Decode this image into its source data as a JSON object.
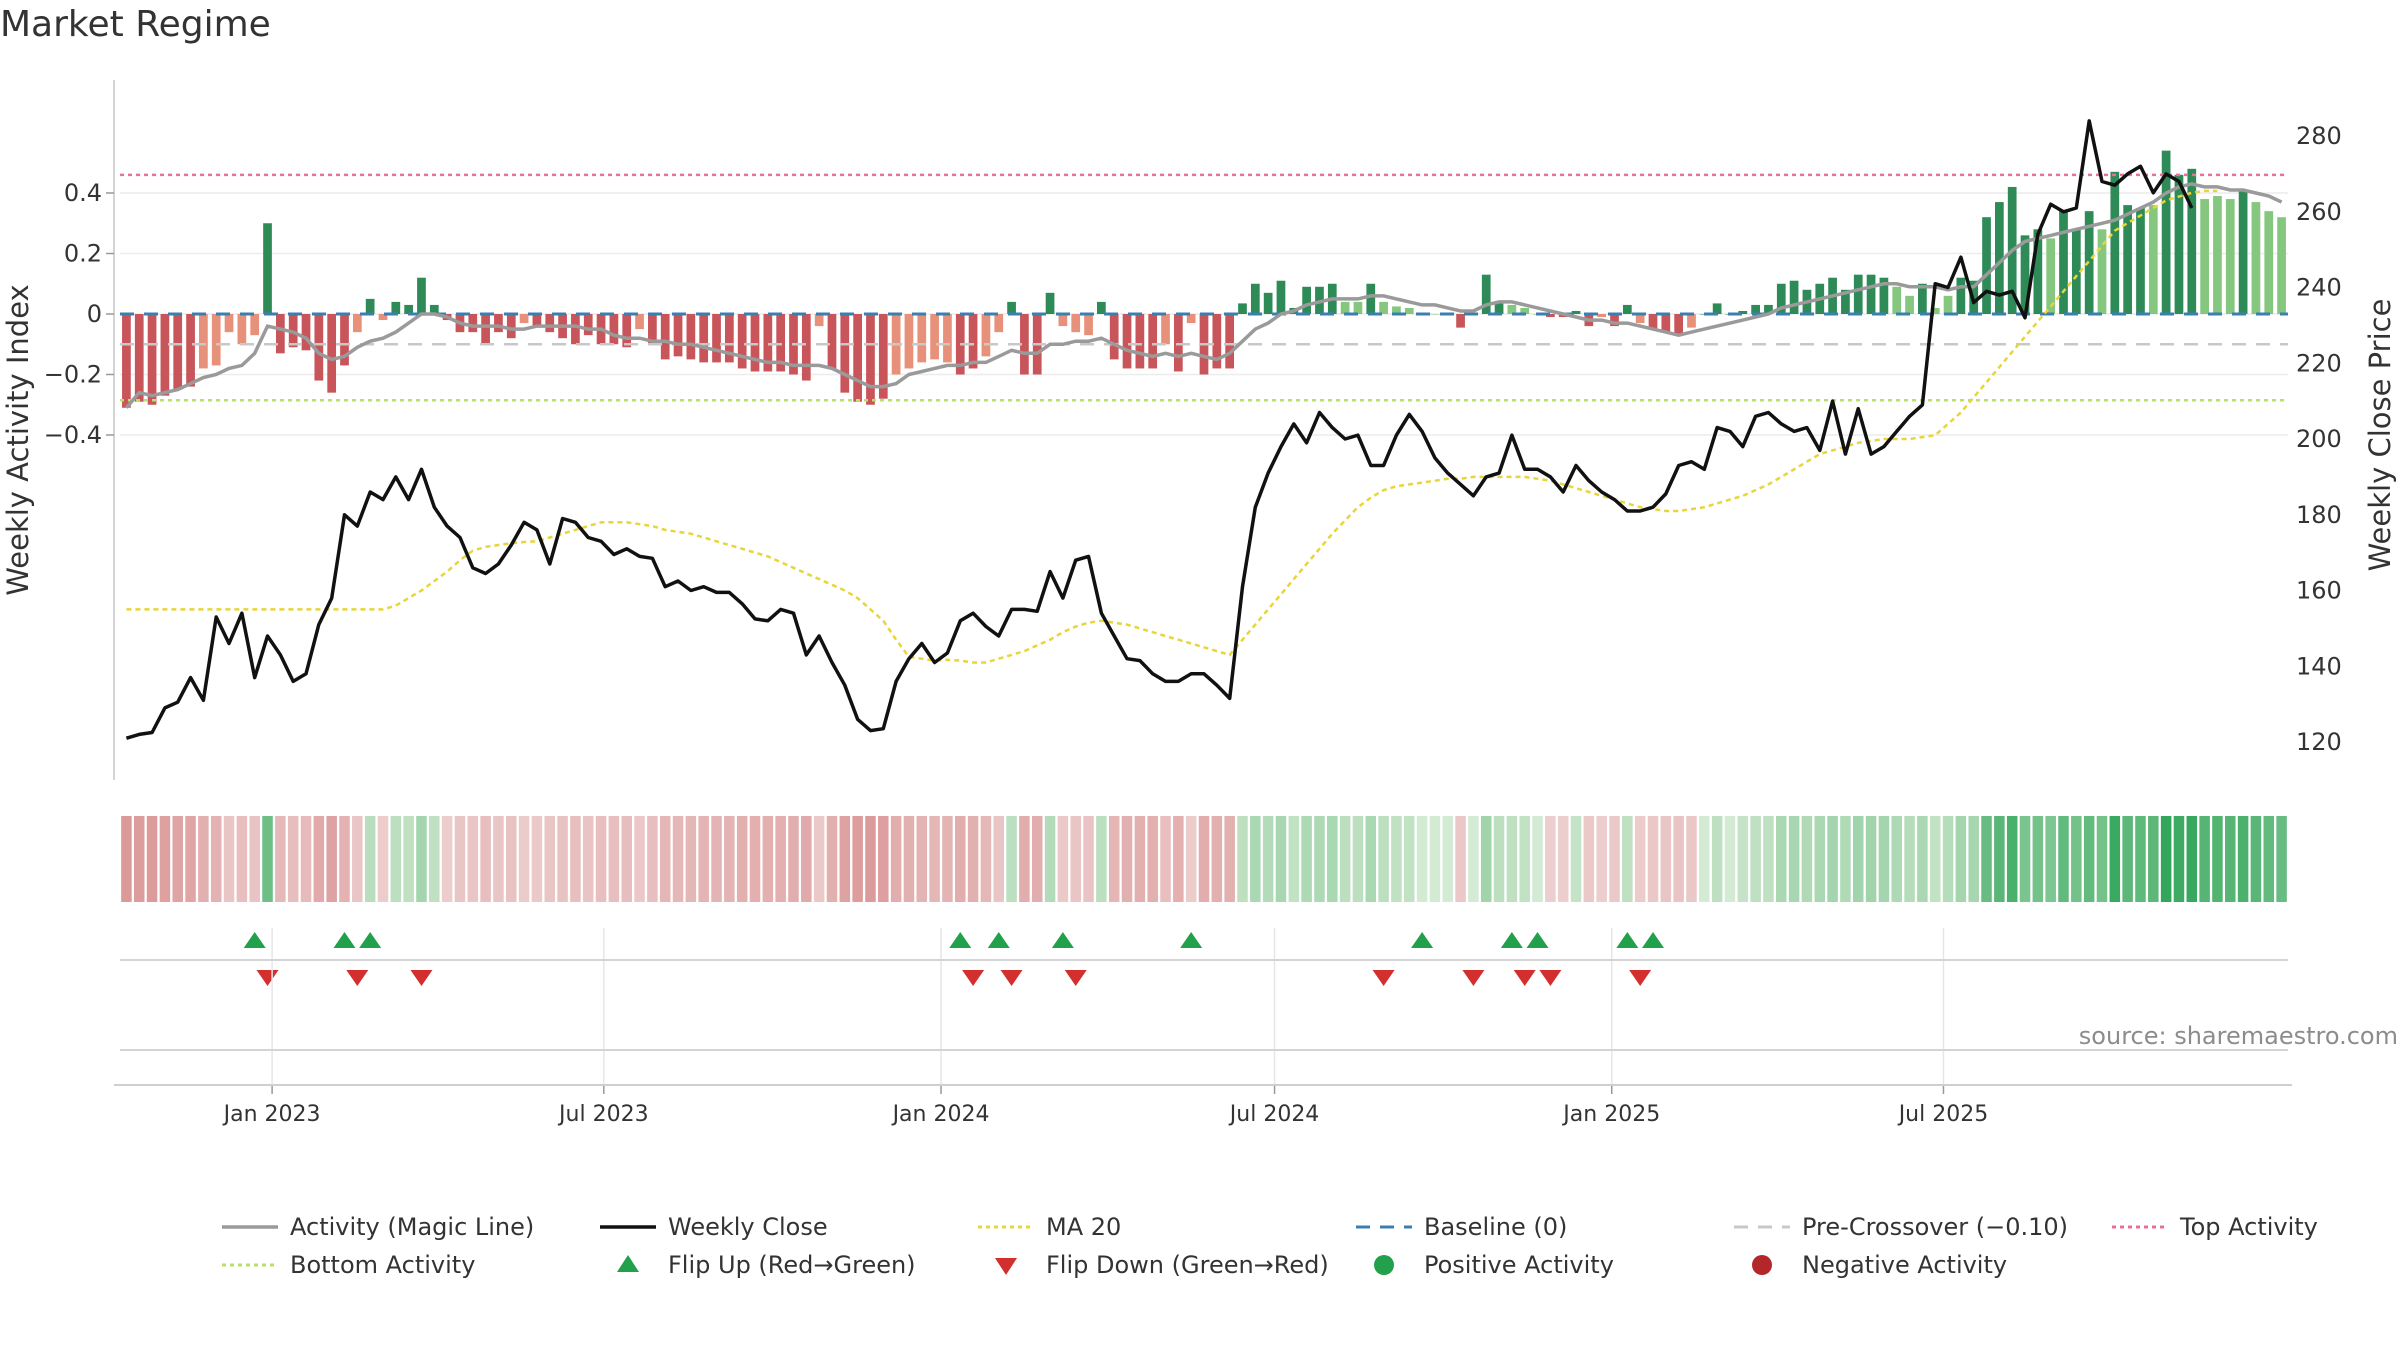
{
  "title": "Market Regime",
  "source_text": "source: sharemaestro.com",
  "colors": {
    "green_dark": "#2e8b57",
    "green_light": "#86c77f",
    "red_dark": "#c8555a",
    "red_light": "#e8917a",
    "magic_line": "#9a9a9a",
    "close_line": "#111111",
    "ma20": "#e8d53a",
    "baseline": "#3b7fb0",
    "pre_crossover": "#c8c8c8",
    "top_activity": "#e8709a",
    "bottom_activity": "#b8e06a",
    "flip_up": "#22a04b",
    "flip_down": "#d32f2f"
  },
  "chart_data": {
    "type": "bar",
    "title": "Market Regime",
    "ylabel": "Weekly Activity Index",
    "y2label": "Weekly Close Price",
    "ylim": [
      -0.58,
      0.58
    ],
    "y2lim": [
      111,
      296
    ],
    "yticks": [
      "0.4",
      "0.2",
      "0",
      "−0.2",
      "−0.4"
    ],
    "y2ticks": [
      "280",
      "260",
      "240",
      "220",
      "200",
      "180",
      "160",
      "140",
      "120"
    ],
    "xticks": [
      "Jan 2023",
      "Jul 2023",
      "Jan 2024",
      "Jul 2024",
      "Jan 2025",
      "Jul 2025"
    ],
    "reference_lines": {
      "baseline": 0,
      "pre_crossover": -0.1,
      "top_activity": 0.46,
      "bottom_activity": -0.285
    },
    "x_start": "2022-10-10",
    "series": [
      {
        "name": "Weekly Activity",
        "values": [
          -0.31,
          -0.29,
          -0.3,
          -0.27,
          -0.25,
          -0.24,
          -0.18,
          -0.17,
          -0.06,
          -0.1,
          -0.07,
          0.3,
          -0.13,
          -0.11,
          -0.12,
          -0.22,
          -0.26,
          -0.17,
          -0.06,
          0.05,
          -0.02,
          0.04,
          0.03,
          0.12,
          0.03,
          -0.02,
          -0.06,
          -0.06,
          -0.1,
          -0.06,
          -0.08,
          -0.03,
          -0.04,
          -0.06,
          -0.08,
          -0.1,
          -0.07,
          -0.1,
          -0.1,
          -0.11,
          -0.05,
          -0.1,
          -0.15,
          -0.14,
          -0.15,
          -0.16,
          -0.16,
          -0.16,
          -0.18,
          -0.19,
          -0.19,
          -0.19,
          -0.2,
          -0.22,
          -0.04,
          -0.18,
          -0.26,
          -0.29,
          -0.3,
          -0.28,
          -0.2,
          -0.18,
          -0.16,
          -0.15,
          -0.16,
          -0.2,
          -0.18,
          -0.14,
          -0.06,
          0.04,
          -0.2,
          -0.2,
          0.07,
          -0.04,
          -0.06,
          -0.07,
          0.04,
          -0.15,
          -0.18,
          -0.18,
          -0.18,
          -0.1,
          -0.19,
          -0.03,
          -0.2,
          -0.18,
          -0.18,
          0.035,
          0.1,
          0.07,
          0.11,
          0.02,
          0.09,
          0.09,
          0.1,
          0.04,
          0.04,
          0.1,
          0.04,
          0.025,
          0.02,
          0,
          0,
          0,
          -0.045,
          0,
          0.13,
          0.04,
          0.03,
          0.02,
          0,
          -0.01,
          -0.01,
          0.01,
          -0.04,
          -0.01,
          -0.04,
          0.03,
          -0.03,
          -0.05,
          -0.06,
          -0.07,
          -0.045,
          0,
          0.035,
          0,
          0.01,
          0.03,
          0.03,
          0.1,
          0.11,
          0.08,
          0.1,
          0.12,
          0.08,
          0.13,
          0.13,
          0.12,
          0.09,
          0.06,
          0.1,
          0.02,
          0.06,
          0.12,
          0.11,
          0.32,
          0.37,
          0.42,
          0.26,
          0.28,
          0.25,
          0.34,
          0.28,
          0.34,
          0.28,
          0.47,
          0.36,
          0.35,
          0.36,
          0.54,
          0.46,
          0.48,
          0.38,
          0.39,
          0.38,
          0.41,
          0.37,
          0.34,
          0.32
        ]
      },
      {
        "name": "Activity (Magic Line)",
        "values": [
          -0.31,
          -0.26,
          -0.27,
          -0.26,
          -0.25,
          -0.23,
          -0.21,
          -0.2,
          -0.18,
          -0.17,
          -0.13,
          -0.04,
          -0.05,
          -0.06,
          -0.08,
          -0.13,
          -0.15,
          -0.14,
          -0.11,
          -0.09,
          -0.08,
          -0.06,
          -0.03,
          0.0,
          0.0,
          -0.01,
          -0.03,
          -0.04,
          -0.04,
          -0.04,
          -0.05,
          -0.05,
          -0.04,
          -0.04,
          -0.04,
          -0.04,
          -0.05,
          -0.05,
          -0.07,
          -0.08,
          -0.08,
          -0.09,
          -0.09,
          -0.1,
          -0.1,
          -0.11,
          -0.12,
          -0.13,
          -0.14,
          -0.15,
          -0.16,
          -0.16,
          -0.17,
          -0.17,
          -0.17,
          -0.18,
          -0.2,
          -0.22,
          -0.24,
          -0.24,
          -0.23,
          -0.2,
          -0.19,
          -0.18,
          -0.17,
          -0.17,
          -0.16,
          -0.16,
          -0.14,
          -0.12,
          -0.13,
          -0.13,
          -0.1,
          -0.1,
          -0.09,
          -0.09,
          -0.08,
          -0.1,
          -0.12,
          -0.13,
          -0.14,
          -0.13,
          -0.14,
          -0.13,
          -0.14,
          -0.15,
          -0.13,
          -0.09,
          -0.05,
          -0.03,
          0.0,
          0.01,
          0.03,
          0.04,
          0.05,
          0.05,
          0.05,
          0.06,
          0.06,
          0.05,
          0.04,
          0.03,
          0.03,
          0.02,
          0.01,
          0.01,
          0.03,
          0.04,
          0.04,
          0.03,
          0.02,
          0.01,
          0.0,
          -0.01,
          -0.02,
          -0.02,
          -0.03,
          -0.03,
          -0.04,
          -0.05,
          -0.06,
          -0.07,
          -0.06,
          -0.05,
          -0.04,
          -0.03,
          -0.02,
          -0.01,
          0.0,
          0.02,
          0.03,
          0.04,
          0.05,
          0.06,
          0.07,
          0.08,
          0.09,
          0.1,
          0.1,
          0.09,
          0.09,
          0.09,
          0.08,
          0.09,
          0.09,
          0.13,
          0.17,
          0.21,
          0.24,
          0.25,
          0.26,
          0.27,
          0.28,
          0.29,
          0.3,
          0.31,
          0.33,
          0.35,
          0.37,
          0.4,
          0.42,
          0.43,
          0.42,
          0.42,
          0.41,
          0.41,
          0.4,
          0.39,
          0.37
        ]
      },
      {
        "name": "Weekly Close",
        "values": [
          121,
          122,
          122.5,
          129,
          130.5,
          137,
          131,
          153,
          146,
          154,
          137,
          148,
          143,
          136,
          138,
          151,
          158,
          180,
          177,
          186,
          184,
          190,
          184,
          192,
          182,
          177,
          174,
          166,
          164.5,
          167,
          172,
          178,
          176,
          167,
          179,
          178,
          174,
          173,
          169.5,
          171,
          169,
          168.5,
          161,
          162.5,
          160,
          161,
          159.5,
          159.5,
          156.5,
          152.5,
          152,
          155,
          154,
          143,
          148,
          141,
          135,
          126,
          123,
          123.5,
          136,
          142,
          146,
          141,
          143.5,
          152,
          154,
          150.5,
          148,
          155,
          155,
          154.5,
          165,
          158,
          168,
          169,
          154,
          148,
          142,
          141.5,
          138,
          136,
          136,
          138,
          138,
          135,
          131.5,
          161,
          182,
          191,
          198,
          204,
          199,
          207,
          203,
          200,
          201,
          193,
          193,
          201,
          206.5,
          202,
          195,
          191,
          188,
          185,
          190,
          191,
          201,
          192,
          192,
          190,
          186,
          193,
          189,
          186,
          184,
          181,
          181,
          182,
          185.5,
          193,
          194,
          192,
          203,
          202,
          198,
          206,
          207,
          204,
          202,
          203,
          197,
          210,
          196,
          208,
          196,
          198,
          202,
          206,
          209,
          241,
          240,
          248,
          236,
          239,
          238,
          239,
          232,
          254,
          262,
          260,
          261,
          284,
          268,
          267,
          270,
          272,
          265,
          270,
          268,
          261
        ]
      },
      {
        "name": "MA 20",
        "values": [
          155,
          155,
          155,
          155,
          155,
          155,
          155,
          155,
          155,
          155,
          155,
          155,
          155,
          155,
          155,
          155,
          155,
          155,
          155,
          155,
          155,
          156,
          158,
          160,
          162.5,
          165,
          168,
          170.5,
          171.5,
          172,
          172.5,
          172.8,
          173,
          174,
          175,
          176,
          177,
          178,
          178,
          178,
          177.5,
          177,
          176,
          175.5,
          175,
          174,
          173,
          172,
          171,
          170,
          169,
          167.5,
          166,
          164.5,
          163,
          161.5,
          160,
          158,
          155,
          152,
          147,
          142.5,
          142,
          141.5,
          141.7,
          141.5,
          141,
          141,
          142,
          143,
          144,
          145.5,
          147,
          149,
          150.5,
          151.5,
          152,
          151.5,
          151,
          150,
          149,
          148,
          147,
          146,
          145,
          144,
          143,
          147,
          151,
          155,
          159,
          163,
          167,
          171,
          175,
          178.5,
          182,
          184.5,
          186.5,
          187.5,
          188,
          188.5,
          189,
          189.5,
          189.5,
          190,
          190,
          190,
          190,
          190,
          189.5,
          189,
          188,
          187,
          186,
          185,
          184,
          183,
          182,
          181.5,
          181,
          181,
          181.5,
          182,
          183,
          184,
          185,
          186.5,
          188,
          190,
          192,
          194,
          196,
          197,
          198,
          199,
          199.5,
          200,
          200,
          200,
          200.5,
          201,
          204,
          207,
          211,
          215,
          219,
          223,
          227,
          231,
          235,
          239,
          243,
          247,
          251,
          255,
          257,
          259,
          261,
          263,
          264,
          265,
          265.5,
          265.5
        ]
      }
    ],
    "regime_strip": [
      -0.31,
      -0.29,
      -0.3,
      -0.27,
      -0.25,
      -0.24,
      -0.18,
      -0.17,
      -0.06,
      -0.1,
      -0.07,
      0.3,
      -0.13,
      -0.11,
      -0.12,
      -0.22,
      -0.26,
      -0.17,
      -0.06,
      0.05,
      -0.02,
      0.04,
      0.03,
      0.12,
      0.03,
      -0.02,
      -0.06,
      -0.06,
      -0.1,
      -0.06,
      -0.08,
      -0.03,
      -0.04,
      -0.06,
      -0.08,
      -0.1,
      -0.07,
      -0.1,
      -0.1,
      -0.11,
      -0.05,
      -0.1,
      -0.15,
      -0.14,
      -0.15,
      -0.16,
      -0.16,
      -0.16,
      -0.18,
      -0.19,
      -0.19,
      -0.19,
      -0.2,
      -0.22,
      -0.04,
      -0.18,
      -0.26,
      -0.29,
      -0.3,
      -0.28,
      -0.2,
      -0.18,
      -0.16,
      -0.15,
      -0.16,
      -0.2,
      -0.18,
      -0.14,
      -0.06,
      0.04,
      -0.2,
      -0.2,
      0.07,
      -0.04,
      -0.06,
      -0.07,
      0.04,
      -0.15,
      -0.18,
      -0.18,
      -0.18,
      -0.1,
      -0.19,
      -0.03,
      -0.2,
      -0.18,
      -0.18,
      0.035,
      0.1,
      0.07,
      0.11,
      0.02,
      0.09,
      0.09,
      0.1,
      0.04,
      0.04,
      0.1,
      0.04,
      0.025,
      0.02,
      0,
      0,
      0,
      -0.045,
      0,
      0.13,
      0.04,
      0.03,
      0.02,
      0,
      -0.01,
      -0.01,
      0.01,
      -0.04,
      -0.01,
      -0.04,
      0.03,
      -0.03,
      -0.05,
      -0.06,
      -0.07,
      -0.045,
      0,
      0.035,
      0,
      0.01,
      0.03,
      0.03,
      0.1,
      0.11,
      0.08,
      0.1,
      0.12,
      0.08,
      0.13,
      0.13,
      0.12,
      0.09,
      0.06,
      0.1,
      0.02,
      0.06,
      0.12,
      0.11,
      0.32,
      0.37,
      0.42,
      0.26,
      0.28,
      0.25,
      0.34,
      0.28,
      0.34,
      0.28,
      0.47,
      0.36,
      0.35,
      0.36,
      0.54,
      0.46,
      0.48,
      0.38,
      0.39,
      0.38,
      0.41,
      0.37,
      0.34,
      0.32
    ],
    "flip_up_weeks": [
      10,
      17,
      19,
      65,
      68,
      73,
      83,
      101,
      108,
      110,
      117,
      119
    ],
    "flip_down_weeks": [
      11,
      18,
      23,
      66,
      69,
      74,
      98,
      105,
      109,
      111,
      118
    ],
    "legend": [
      "Activity (Magic Line)",
      "Weekly Close",
      "MA 20",
      "Baseline (0)",
      "Pre-Crossover (−0.10)",
      "Top Activity",
      "Bottom Activity",
      "Flip Up (Red→Green)",
      "Flip Down (Green→Red)",
      "Positive Activity",
      "Negative Activity"
    ]
  }
}
